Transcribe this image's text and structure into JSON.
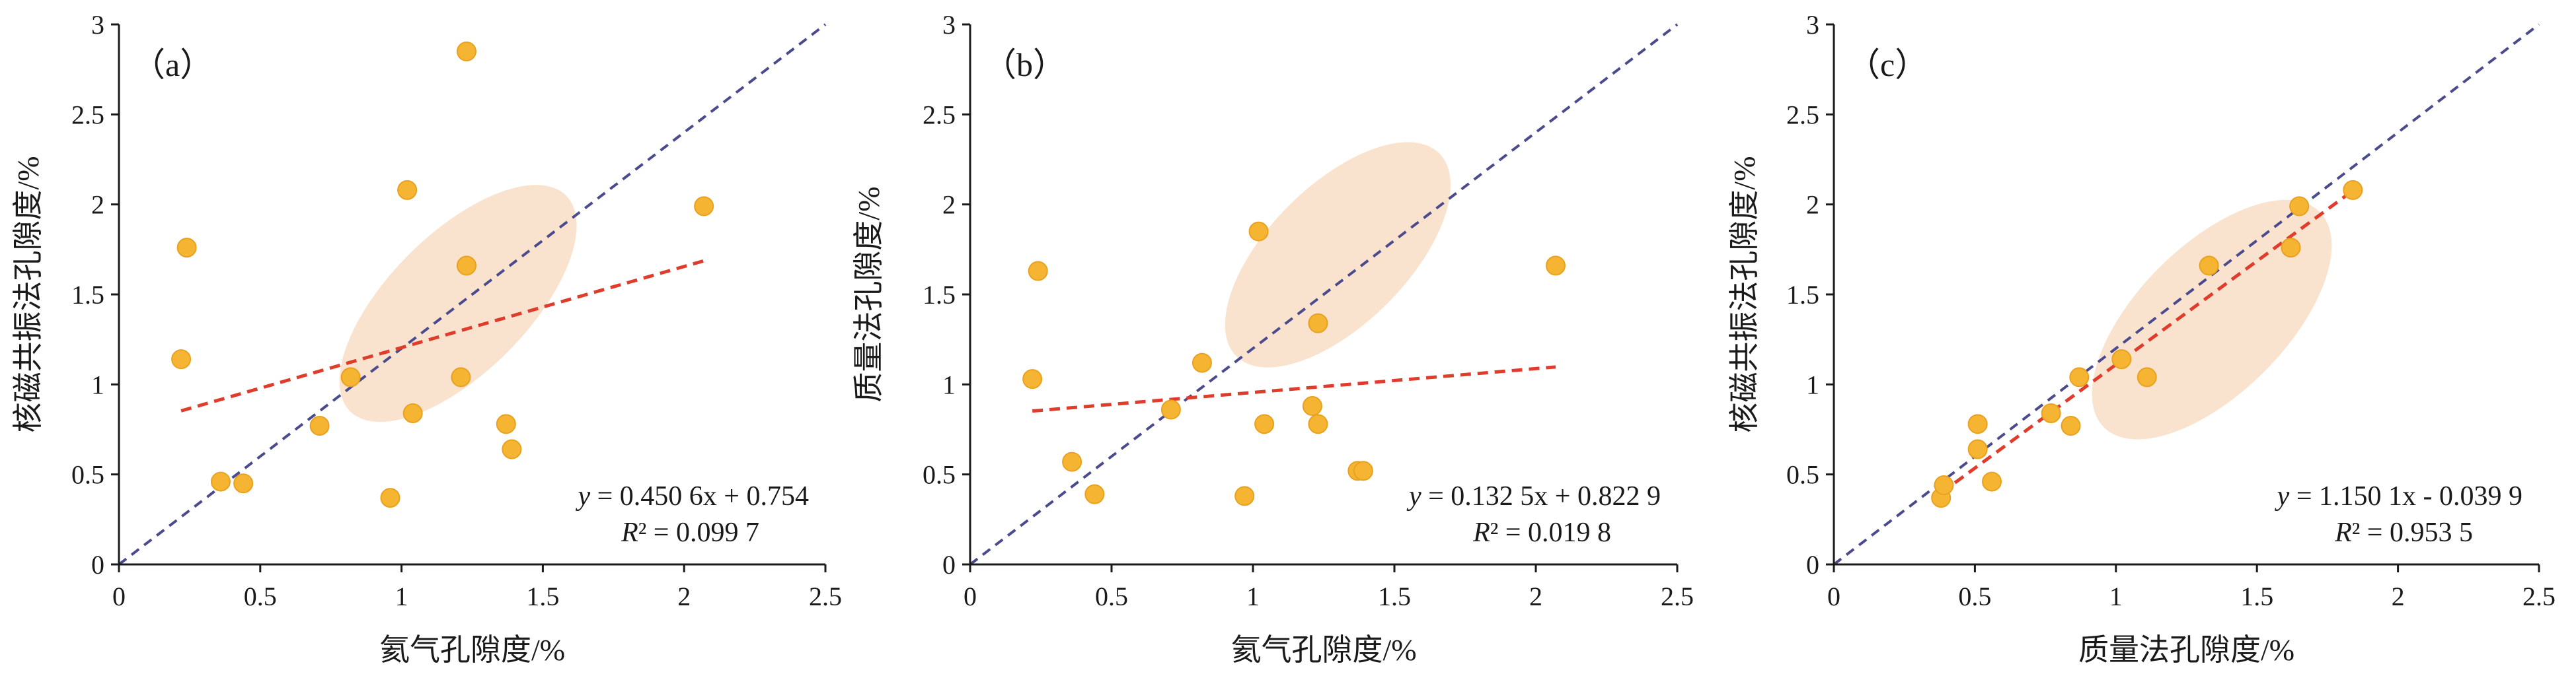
{
  "chart_data": [
    {
      "type": "scatter",
      "label": "（a）",
      "xlabel": "氦气孔隙度/%",
      "ylabel": "核磁共振法孔隙度/%",
      "xlim": [
        0,
        2.5
      ],
      "ylim": [
        0,
        3
      ],
      "xticks": [
        "0",
        "0.5",
        "1",
        "1.5",
        "2",
        "2.5"
      ],
      "yticks": [
        "0",
        "0.5",
        "1",
        "1.5",
        "2",
        "2.5",
        "3"
      ],
      "points": [
        [
          0.22,
          1.14
        ],
        [
          0.24,
          1.76
        ],
        [
          0.36,
          0.46
        ],
        [
          0.44,
          0.45
        ],
        [
          0.71,
          0.77
        ],
        [
          0.82,
          1.04
        ],
        [
          0.96,
          0.37
        ],
        [
          1.02,
          2.08
        ],
        [
          1.04,
          0.84
        ],
        [
          1.21,
          1.04
        ],
        [
          1.23,
          1.66
        ],
        [
          1.23,
          2.85
        ],
        [
          1.37,
          0.78
        ],
        [
          1.39,
          0.64
        ],
        [
          2.07,
          1.99
        ]
      ],
      "fit": {
        "slope": 0.4506,
        "intercept": 0.754,
        "x": [
          0.22,
          2.07
        ]
      },
      "equation": "= 0.450 6x + 0.754",
      "equation_prefix": "y",
      "r2_prefix": "R",
      "r2": "² = 0.099 7",
      "ellipse": {
        "cx": 1.2,
        "cy": 1.45,
        "rx": 0.66,
        "ry": 0.3,
        "angle_deg": 45
      },
      "diagonal": [
        [
          0,
          0
        ],
        [
          2.5,
          3
        ]
      ],
      "colors": {
        "points": "#f5b431",
        "fit": "#e03c2c",
        "diagonal": "#4a4a8c",
        "ellipse": "#f8dcc3"
      }
    },
    {
      "type": "scatter",
      "label": "（b）",
      "xlabel": "氦气孔隙度/%",
      "ylabel": "质量法孔隙度/%",
      "xlim": [
        0,
        2.5
      ],
      "ylim": [
        0,
        3
      ],
      "xticks": [
        "0",
        "0.5",
        "1",
        "1.5",
        "2",
        "2.5"
      ],
      "yticks": [
        "0",
        "0.5",
        "1",
        "1.5",
        "2",
        "2.5",
        "3"
      ],
      "points": [
        [
          0.22,
          1.03
        ],
        [
          0.24,
          1.63
        ],
        [
          0.36,
          0.57
        ],
        [
          0.44,
          0.39
        ],
        [
          0.71,
          0.86
        ],
        [
          0.82,
          1.12
        ],
        [
          0.97,
          0.38
        ],
        [
          1.02,
          1.85
        ],
        [
          1.04,
          0.78
        ],
        [
          1.21,
          0.88
        ],
        [
          1.23,
          1.34
        ],
        [
          1.23,
          0.78
        ],
        [
          1.37,
          0.52
        ],
        [
          1.39,
          0.52
        ],
        [
          2.07,
          1.66
        ]
      ],
      "fit": {
        "slope": 0.1325,
        "intercept": 0.8229,
        "x": [
          0.22,
          2.07
        ]
      },
      "equation": "= 0.132 5x + 0.822 9",
      "equation_prefix": "y",
      "r2_prefix": "R",
      "r2": "² = 0.019 8",
      "ellipse": {
        "cx": 1.3,
        "cy": 1.72,
        "rx": 0.62,
        "ry": 0.3,
        "angle_deg": 45
      },
      "diagonal": [
        [
          0,
          0
        ],
        [
          2.5,
          3
        ]
      ],
      "colors": {
        "points": "#f5b431",
        "fit": "#e03c2c",
        "diagonal": "#4a4a8c",
        "ellipse": "#f8dcc3"
      }
    },
    {
      "type": "scatter",
      "label": "（c）",
      "xlabel": "质量法孔隙度/%",
      "ylabel": "核磁共振法孔隙度/%",
      "xlim": [
        0,
        2.5
      ],
      "ylim": [
        0,
        3
      ],
      "xticks": [
        "0",
        "0.5",
        "1",
        "1.5",
        "2",
        "2.5"
      ],
      "yticks": [
        "0",
        "0.5",
        "1",
        "1.5",
        "2",
        "2.5",
        "3"
      ],
      "points": [
        [
          0.38,
          0.37
        ],
        [
          0.39,
          0.44
        ],
        [
          0.51,
          0.64
        ],
        [
          0.51,
          0.78
        ],
        [
          0.56,
          0.46
        ],
        [
          0.77,
          0.84
        ],
        [
          0.84,
          0.77
        ],
        [
          0.87,
          1.04
        ],
        [
          1.02,
          1.14
        ],
        [
          1.11,
          1.04
        ],
        [
          1.33,
          1.66
        ],
        [
          1.62,
          1.76
        ],
        [
          1.65,
          1.99
        ],
        [
          1.84,
          2.08
        ]
      ],
      "fit": {
        "slope": 1.1501,
        "intercept": -0.0399,
        "x": [
          0.38,
          1.84
        ]
      },
      "equation": "= 1.150 1x - 0.039 9",
      "equation_prefix": "y",
      "r2_prefix": "R",
      "r2": "² = 0.953 5",
      "ellipse": {
        "cx": 1.34,
        "cy": 1.36,
        "rx": 0.66,
        "ry": 0.32,
        "angle_deg": 45
      },
      "diagonal": [
        [
          0,
          0
        ],
        [
          2.5,
          3
        ]
      ],
      "colors": {
        "points": "#f5b431",
        "fit": "#e03c2c",
        "diagonal": "#4a4a8c",
        "ellipse": "#f8dcc3"
      }
    }
  ]
}
